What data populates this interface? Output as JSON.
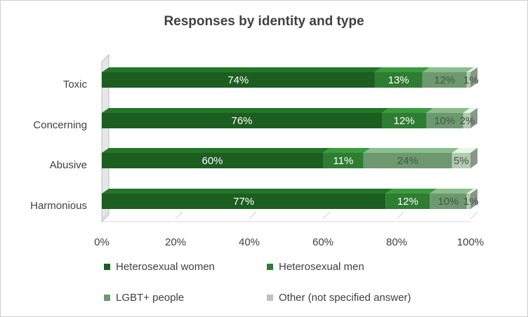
{
  "chart_data": {
    "type": "bar",
    "orientation": "horizontal",
    "stacked": "100%",
    "title": "Responses by identity and type",
    "categories": [
      "Toxic",
      "Concerning",
      "Abusive",
      "Harmonious"
    ],
    "series": [
      {
        "name": "Heterosexual women",
        "values": [
          74,
          76,
          60,
          77
        ],
        "labels": [
          "74%",
          "76%",
          "60%",
          "77%"
        ],
        "color": "#1b5e20"
      },
      {
        "name": "Heterosexual men",
        "values": [
          13,
          12,
          11,
          12
        ],
        "labels": [
          "13%",
          "12%",
          "11%",
          "12%"
        ],
        "color": "#2e7d32"
      },
      {
        "name": "LGBT+ people",
        "values": [
          12,
          10,
          24,
          10
        ],
        "labels": [
          "12%",
          "10%",
          "24%",
          "10%"
        ],
        "color": "#6e9870"
      },
      {
        "name": "Other (not specified answer)",
        "values": [
          1,
          2,
          5,
          1
        ],
        "labels": [
          "1%",
          "2%",
          "5%",
          "1%"
        ],
        "color": "#b4c8b4"
      }
    ],
    "x_ticks": [
      "0%",
      "20%",
      "40%",
      "60%",
      "80%",
      "100%"
    ],
    "xlim": [
      0,
      100
    ],
    "legend": "bottom",
    "grid": false
  }
}
